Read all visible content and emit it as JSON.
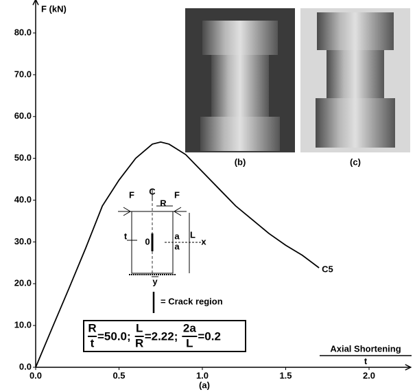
{
  "chart_data": {
    "type": "line",
    "y_label": "F (kN)",
    "x_label_num": "Axial Shortening",
    "x_label_den": "t",
    "caption": "(a)",
    "x": [
      0,
      0.1,
      0.2,
      0.3,
      0.4,
      0.5,
      0.6,
      0.7,
      0.75,
      0.8,
      0.9,
      1.0,
      1.1,
      1.2,
      1.3,
      1.4,
      1.5,
      1.6,
      1.7
    ],
    "series": [
      {
        "name": "C5",
        "color": "#000000",
        "values": [
          0,
          9.5,
          18.9,
          28.5,
          38.6,
          44.8,
          50,
          53.4,
          53.9,
          53.4,
          50.9,
          46.8,
          42.7,
          38.6,
          35.3,
          32,
          29.2,
          26.8,
          23.8
        ]
      }
    ],
    "xlim": [
      0,
      2.25
    ],
    "ylim": [
      0,
      88
    ],
    "xticks": [
      {
        "value": 0,
        "label": "0.0"
      },
      0.5,
      {
        "value": 1,
        "label": "1.0"
      },
      1.5,
      {
        "value": 2,
        "label": "2.0"
      }
    ],
    "yticks": [
      {
        "value": 0,
        "label": "0.0"
      },
      {
        "value": 10,
        "label": "10.0"
      },
      {
        "value": 20,
        "label": "20.0"
      },
      {
        "value": 30,
        "label": "30.0"
      },
      {
        "value": 40,
        "label": "40.0"
      },
      {
        "value": 50,
        "label": "50.0"
      },
      {
        "value": 60,
        "label": "60.0"
      },
      {
        "value": 70,
        "label": "70.0"
      },
      {
        "value": 80,
        "label": "80.0"
      }
    ],
    "photos": [
      "(b)",
      "(c)"
    ],
    "inset_labels": [
      "F",
      "F",
      "C",
      "R",
      "t",
      "0",
      "a",
      "a",
      "L",
      "x",
      "y"
    ],
    "crack_legend": "= Crack region",
    "formula": [
      {
        "num": "R",
        "den": "t",
        "rest": "=50.0;"
      },
      {
        "num": "L",
        "den": "R",
        "rest": "=2.22;"
      },
      {
        "num": "2a",
        "den": "L",
        "rest": "=0.2"
      }
    ]
  }
}
